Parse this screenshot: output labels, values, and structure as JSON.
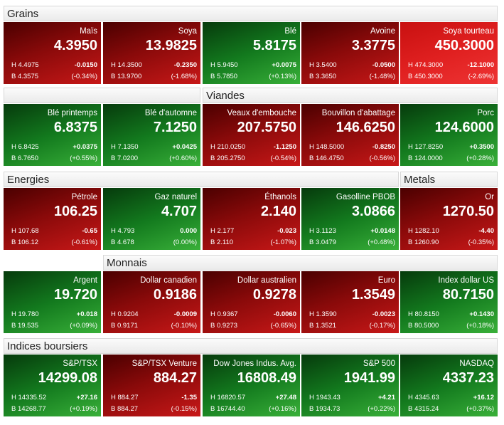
{
  "sections": [
    {
      "headers": [
        "Grains"
      ],
      "tiles": [
        {
          "name": "Maïs",
          "price": "4.3950",
          "high": "H 4.4975",
          "change": "-0.0150",
          "low": "B 4.3575",
          "percent": "(-0.34%)",
          "color": "red"
        },
        {
          "name": "Soya",
          "price": "13.9825",
          "high": "H 14.3500",
          "change": "-0.2350",
          "low": "B 13.9700",
          "percent": "(-1.68%)",
          "color": "red"
        },
        {
          "name": "Blé",
          "price": "5.8175",
          "high": "H 5.9450",
          "change": "+0.0075",
          "low": "B 5.7850",
          "percent": "(+0.13%)",
          "color": "green"
        },
        {
          "name": "Avoine",
          "price": "3.3775",
          "high": "H 3.5400",
          "change": "-0.0500",
          "low": "B 3.3650",
          "percent": "(-1.48%)",
          "color": "red"
        },
        {
          "name": "Soya tourteau",
          "price": "450.3000",
          "high": "H 474.3000",
          "change": "-12.1000",
          "low": "B 450.3000",
          "percent": "(-2.69%)",
          "color": "bright-red"
        }
      ]
    },
    {
      "headers": [
        "Viandes"
      ],
      "tiles": [
        {
          "name": "Blé printemps",
          "price": "6.8375",
          "high": "H 6.8425",
          "change": "+0.0375",
          "low": "B 6.7650",
          "percent": "(+0.55%)",
          "color": "green"
        },
        {
          "name": "Blé d'automne",
          "price": "7.1250",
          "high": "H 7.1350",
          "change": "+0.0425",
          "low": "B 7.0200",
          "percent": "(+0.60%)",
          "color": "green"
        },
        {
          "name": "Veaux d'embouche",
          "price": "207.5750",
          "high": "H 210.0250",
          "change": "-1.1250",
          "low": "B 205.2750",
          "percent": "(-0.54%)",
          "color": "red"
        },
        {
          "name": "Bouvillon d'abattage",
          "price": "146.6250",
          "high": "H 148.5000",
          "change": "-0.8250",
          "low": "B 146.4750",
          "percent": "(-0.56%)",
          "color": "red"
        },
        {
          "name": "Porc",
          "price": "124.6000",
          "high": "H 127.8250",
          "change": "+0.3500",
          "low": "B 124.0000",
          "percent": "(+0.28%)",
          "color": "green"
        }
      ]
    },
    {
      "headers": [
        "Energies",
        "Metals"
      ],
      "tiles": [
        {
          "name": "Pétrole",
          "price": "106.25",
          "high": "H 107.68",
          "change": "-0.65",
          "low": "B 106.12",
          "percent": "(-0.61%)",
          "color": "red"
        },
        {
          "name": "Gaz naturel",
          "price": "4.707",
          "high": "H 4.793",
          "change": "0.000",
          "low": "B 4.678",
          "percent": "(0.00%)",
          "color": "green"
        },
        {
          "name": "Éthanols",
          "price": "2.140",
          "high": "H 2.177",
          "change": "-0.023",
          "low": "B 2.110",
          "percent": "(-1.07%)",
          "color": "red"
        },
        {
          "name": "Gasolline PBOB",
          "price": "3.0866",
          "high": "H 3.1123",
          "change": "+0.0148",
          "low": "B 3.0479",
          "percent": "(+0.48%)",
          "color": "green"
        },
        {
          "name": "Or",
          "price": "1270.50",
          "high": "H 1282.10",
          "change": "-4.40",
          "low": "B 1260.90",
          "percent": "(-0.35%)",
          "color": "red"
        }
      ]
    },
    {
      "headers": [
        "Monnais"
      ],
      "tiles": [
        {
          "name": "Argent",
          "price": "19.720",
          "high": "H 19.780",
          "change": "+0.018",
          "low": "B 19.535",
          "percent": "(+0.09%)",
          "color": "green"
        },
        {
          "name": "Dollar canadien",
          "price": "0.9186",
          "high": "H 0.9204",
          "change": "-0.0009",
          "low": "B 0.9171",
          "percent": "(-0.10%)",
          "color": "red"
        },
        {
          "name": "Dollar australien",
          "price": "0.9278",
          "high": "H 0.9367",
          "change": "-0.0060",
          "low": "B 0.9273",
          "percent": "(-0.65%)",
          "color": "red"
        },
        {
          "name": "Euro",
          "price": "1.3549",
          "high": "H 1.3590",
          "change": "-0.0023",
          "low": "B 1.3521",
          "percent": "(-0.17%)",
          "color": "red"
        },
        {
          "name": "Index dollar US",
          "price": "80.7150",
          "high": "H 80.8150",
          "change": "+0.1430",
          "low": "B 80.5000",
          "percent": "(+0.18%)",
          "color": "green"
        }
      ]
    },
    {
      "headers": [
        "Indices boursiers"
      ],
      "tiles": [
        {
          "name": "S&P/TSX",
          "price": "14299.08",
          "high": "H 14335.52",
          "change": "+27.16",
          "low": "B 14268.77",
          "percent": "(+0.19%)",
          "color": "green"
        },
        {
          "name": "S&P/TSX Venture",
          "price": "884.27",
          "high": "H 884.27",
          "change": "-1.35",
          "low": "B 884.27",
          "percent": "(-0.15%)",
          "color": "red"
        },
        {
          "name": "Dow Jones Indus. Avg.",
          "price": "16808.49",
          "high": "H 16820.57",
          "change": "+27.48",
          "low": "B 16744.40",
          "percent": "(+0.16%)",
          "color": "green"
        },
        {
          "name": "S&P 500",
          "price": "1941.99",
          "high": "H 1943.43",
          "change": "+4.21",
          "low": "B 1934.73",
          "percent": "(+0.22%)",
          "color": "green"
        },
        {
          "name": "NASDAQ",
          "price": "4337.23",
          "high": "H 4345.63",
          "change": "+16.12",
          "low": "B 4315.24",
          "percent": "(+0.37%)",
          "color": "green"
        }
      ]
    }
  ]
}
